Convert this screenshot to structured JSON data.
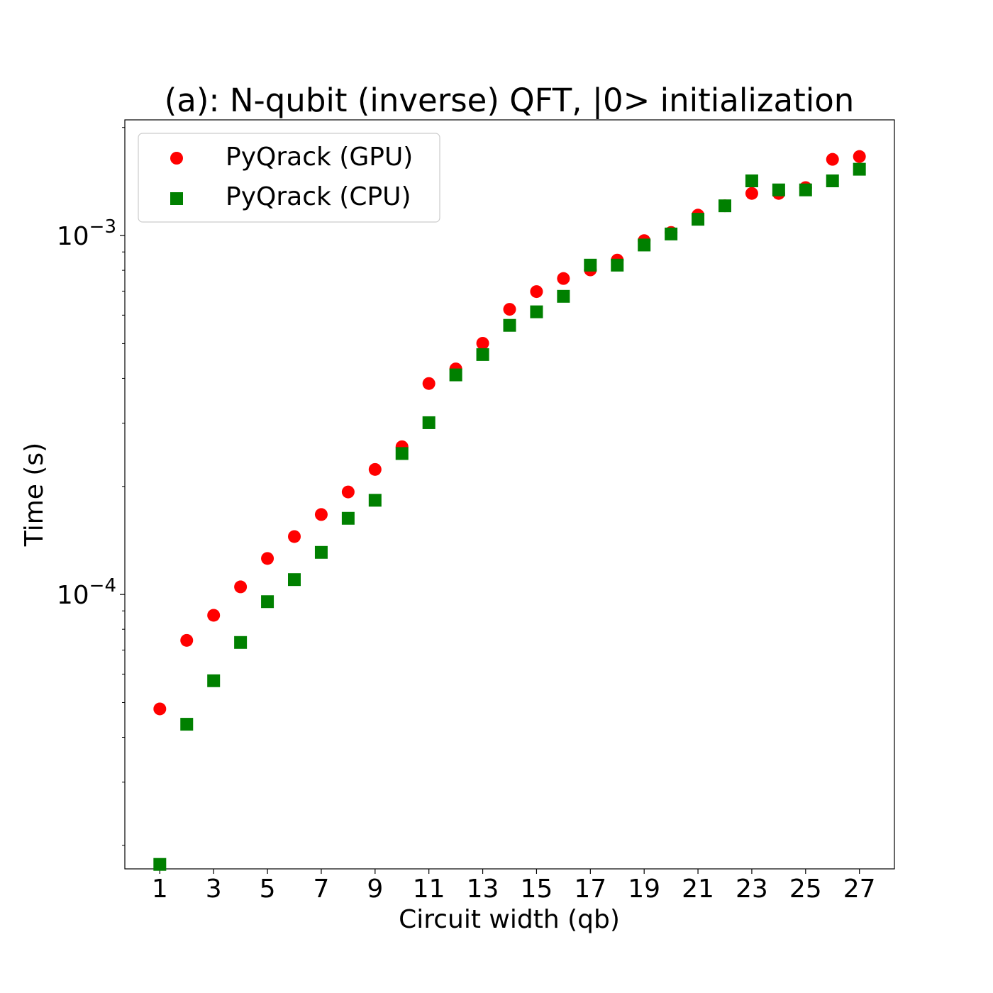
{
  "chart_data": {
    "type": "scatter",
    "title": "(a): N-qubit (inverse) QFT, |0> initialization",
    "xlabel": "Circuit width (qb)",
    "ylabel": "Time (s)",
    "xlim": [
      -0.3,
      28.3
    ],
    "ylim": [
      1.72e-05,
      0.0021
    ],
    "yscale": "log",
    "grid": false,
    "legend_position": "top-left",
    "x_ticks": [
      1,
      3,
      5,
      7,
      9,
      11,
      13,
      15,
      17,
      19,
      21,
      23,
      25,
      27
    ],
    "x_tick_labels": [
      "1",
      "3",
      "5",
      "7",
      "9",
      "11",
      "13",
      "15",
      "17",
      "19",
      "21",
      "23",
      "25",
      "27"
    ],
    "y_ticks": [
      {
        "value": 0.0001,
        "base": "10",
        "exponent": "−4"
      },
      {
        "value": 0.001,
        "base": "10",
        "exponent": "−3"
      }
    ],
    "x": [
      1,
      2,
      3,
      4,
      5,
      6,
      7,
      8,
      9,
      10,
      11,
      12,
      13,
      14,
      15,
      16,
      17,
      18,
      19,
      20,
      21,
      22,
      23,
      24,
      25,
      26,
      27
    ],
    "series": [
      {
        "name": "PyQrack (GPU)",
        "color": "#ff0000",
        "marker": "circle",
        "values": [
          4.8e-05,
          7.45e-05,
          8.75e-05,
          0.000105,
          0.000126,
          0.000145,
          0.000167,
          0.000193,
          0.000223,
          0.000258,
          0.000387,
          0.000425,
          0.000501,
          0.000623,
          0.000698,
          0.000759,
          0.000802,
          0.000854,
          0.000968,
          0.00102,
          0.00114,
          0.00121,
          0.00131,
          0.00131,
          0.00136,
          0.00163,
          0.00166
        ]
      },
      {
        "name": "PyQrack (CPU)",
        "color": "#008000",
        "marker": "square",
        "values": [
          1.77e-05,
          4.35e-05,
          5.75e-05,
          7.35e-05,
          9.55e-05,
          0.00011,
          0.000131,
          0.000163,
          0.000183,
          0.000247,
          0.000301,
          0.000409,
          0.000466,
          0.000562,
          0.000613,
          0.000677,
          0.000827,
          0.000827,
          0.000941,
          0.00101,
          0.00111,
          0.00121,
          0.00142,
          0.00134,
          0.00134,
          0.00142,
          0.00153
        ]
      }
    ]
  }
}
